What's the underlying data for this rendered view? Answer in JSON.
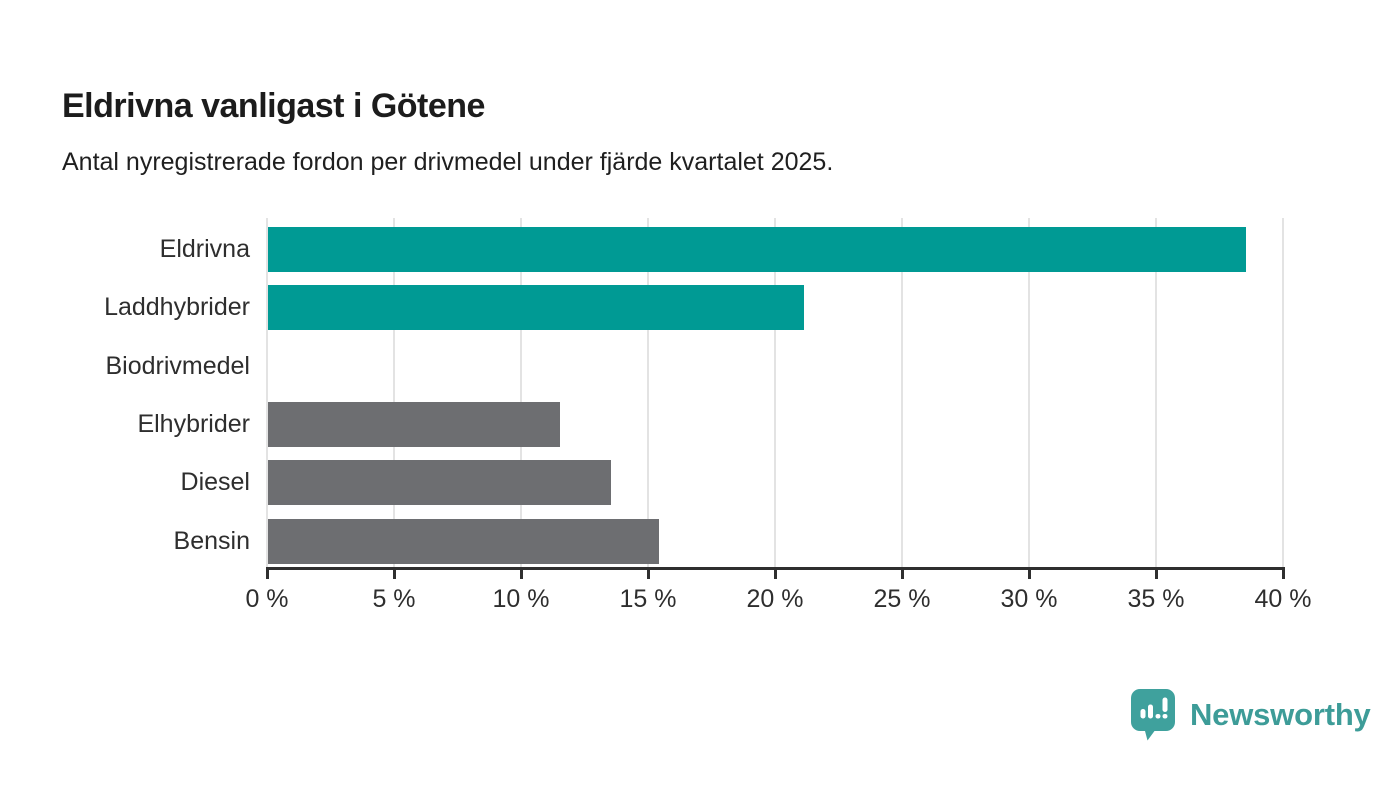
{
  "title": "Eldrivna vanligast i Götene",
  "subtitle": "Antal nyregistrerade fordon per drivmedel under fjärde kvartalet 2025.",
  "logo": {
    "text": "Newsworthy",
    "icon": "newsworthy-speech-bubble-bar-chart-icon",
    "badge_color": "#3FA19D",
    "text_color": "#3D9C98"
  },
  "colors": {
    "highlight_bar": "#009A94",
    "default_bar": "#6D6E71",
    "gridline": "#E3E3E3",
    "axis": "#2F2F2F",
    "label_text": "#2E2E2E"
  },
  "chart_data": {
    "type": "bar",
    "orientation": "horizontal",
    "title": "Eldrivna vanligast i Götene",
    "subtitle": "Antal nyregistrerade fordon per drivmedel under fjärde kvartalet 2025.",
    "xlabel": "",
    "ylabel": "",
    "unit": "%",
    "categories": [
      "Eldrivna",
      "Laddhybrider",
      "Biodrivmedel",
      "Elhybrider",
      "Diesel",
      "Bensin"
    ],
    "values": [
      38.5,
      21.1,
      0,
      11.5,
      13.5,
      15.4
    ],
    "bar_colors": [
      "#009A94",
      "#009A94",
      "#6D6E71",
      "#6D6E71",
      "#6D6E71",
      "#6D6E71"
    ],
    "xlim": [
      0,
      40
    ],
    "x_ticks": [
      0,
      5,
      10,
      15,
      20,
      25,
      30,
      35,
      40
    ],
    "x_tick_labels": [
      "0 %",
      "5 %",
      "10 %",
      "15 %",
      "20 %",
      "25 %",
      "30 %",
      "35 %",
      "40 %"
    ],
    "grid": true,
    "legend": "none"
  }
}
